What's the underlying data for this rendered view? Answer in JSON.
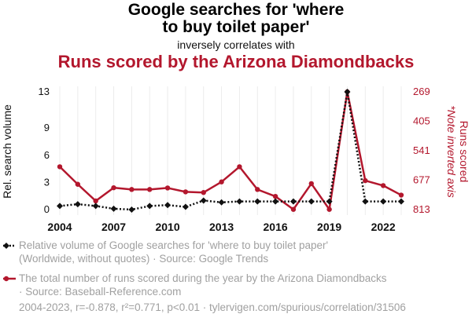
{
  "title_line1": "Google searches for 'where",
  "title_line2": "to buy toilet paper'",
  "subtitle": "inversely correlates with",
  "title2": "Runs scored by the Arizona Diamondbacks",
  "colors": {
    "google": "#111111",
    "runs": "#b3172d",
    "legend_text": "#a0a0a0"
  },
  "legend": {
    "google_line1": "Relative volume of Google searches for 'where to buy toilet paper'",
    "google_line2": "(Worldwide, without quotes) · Source: Google Trends",
    "runs_line1": "The total number of runs scored during the year by the Arizona Diamondbacks",
    "runs_line2": "· Source: Baseball-Reference.com"
  },
  "footer": "2004-2023, r=-0.878, r²=0.771, p<0.01 · tylervigen.com/spurious/correlation/31506",
  "chart_data": {
    "type": "line",
    "x": [
      2004,
      2005,
      2006,
      2007,
      2008,
      2009,
      2010,
      2011,
      2012,
      2013,
      2014,
      2015,
      2016,
      2017,
      2018,
      2019,
      2020,
      2021,
      2022,
      2023
    ],
    "x_ticks": [
      "2004",
      "2007",
      "2010",
      "2013",
      "2016",
      "2019",
      "2022"
    ],
    "series": [
      {
        "name": "Relative volume of Google searches for 'where to buy toilet paper'",
        "axis": "left",
        "style": "dotted",
        "marker": "diamond",
        "values": [
          0.4,
          0.6,
          0.4,
          0.1,
          0.0,
          0.4,
          0.5,
          0.3,
          1.0,
          0.8,
          0.9,
          0.9,
          0.9,
          0.9,
          0.9,
          0.9,
          13.0,
          0.9,
          0.9,
          0.9
        ]
      },
      {
        "name": "The total number of runs scored during the year by the Arizona Diamondbacks",
        "axis": "right",
        "style": "solid",
        "values": [
          615,
          696,
          773,
          712,
          720,
          720,
          713,
          731,
          734,
          685,
          615,
          720,
          752,
          812,
          693,
          812,
          269,
          679,
          702,
          746
        ]
      }
    ],
    "ylabel_left": "Rel. search volume",
    "ylabel_right_line1": "Runs scored",
    "ylabel_right_line2": "*Note inverted axis",
    "left_ticks": [
      "0",
      "3",
      "6",
      "9",
      "13"
    ],
    "right_ticks": [
      "269",
      "405",
      "541",
      "677",
      "813"
    ],
    "ylim_left": [
      0,
      13
    ],
    "ylim_right": [
      269,
      813
    ],
    "right_inverted": true,
    "grid": "vertical"
  }
}
